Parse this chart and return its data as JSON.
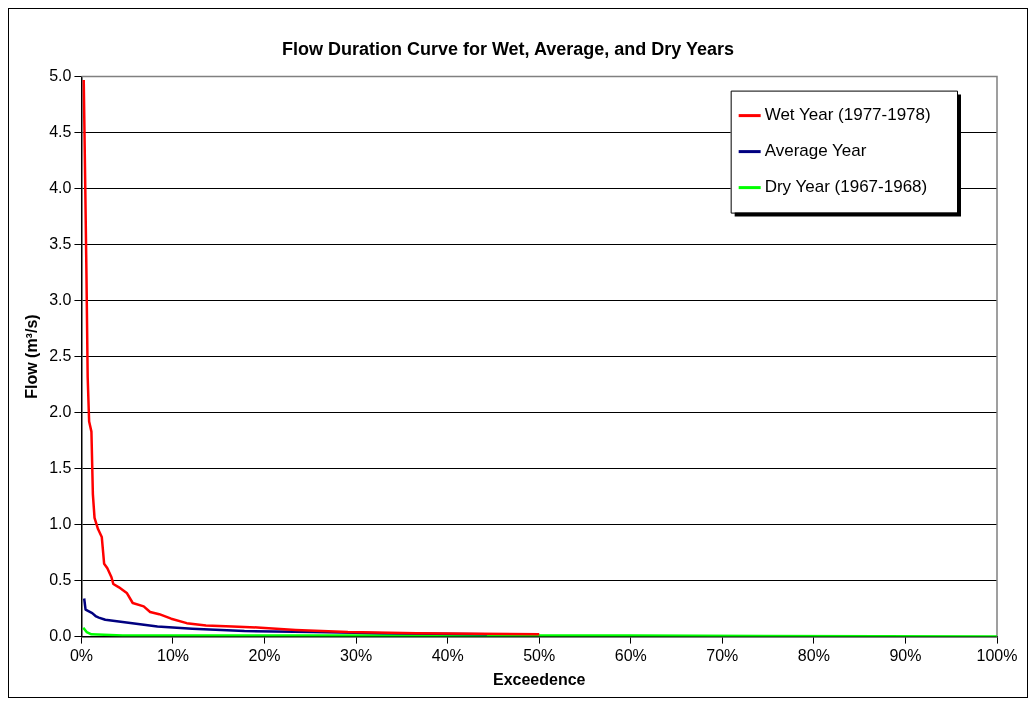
{
  "chart_data": {
    "type": "line",
    "title": "Flow Duration Curve for Wet, Average, and Dry Years",
    "xlabel": "Exceedence",
    "ylabel": "Flow (m³/s)",
    "xlim": [
      0,
      100
    ],
    "xticks": [
      {
        "value": 0,
        "label": "0%"
      },
      {
        "value": 10,
        "label": "10%"
      },
      {
        "value": 20,
        "label": "20%"
      },
      {
        "value": 30,
        "label": "30%"
      },
      {
        "value": 40,
        "label": "40%"
      },
      {
        "value": 50,
        "label": "50%"
      },
      {
        "value": 60,
        "label": "60%"
      },
      {
        "value": 70,
        "label": "70%"
      },
      {
        "value": 80,
        "label": "80%"
      },
      {
        "value": 90,
        "label": "90%"
      },
      {
        "value": 100,
        "label": "100%"
      }
    ],
    "ylim": [
      0,
      5
    ],
    "yticks": [
      {
        "value": 0,
        "label": "0.0"
      },
      {
        "value": 0.5,
        "label": "0.5"
      },
      {
        "value": 1,
        "label": "1.0"
      },
      {
        "value": 1.5,
        "label": "1.5"
      },
      {
        "value": 2,
        "label": "2.0"
      },
      {
        "value": 2.5,
        "label": "2.5"
      },
      {
        "value": 3,
        "label": "3.0"
      },
      {
        "value": 3.5,
        "label": "3.5"
      },
      {
        "value": 4,
        "label": "4.0"
      },
      {
        "value": 4.5,
        "label": "4.5"
      },
      {
        "value": 5,
        "label": "5.0"
      }
    ],
    "grid": "y",
    "legend": "top right",
    "marker": "none",
    "line_style": "solid",
    "series": [
      {
        "name": "Wet Year (1977-1978)",
        "color": "#ff0000",
        "x": [
          0.25,
          0.42,
          0.55,
          0.68,
          0.84,
          1.09,
          1.25,
          1.43,
          1.81,
          2.22,
          2.48,
          2.83,
          3.28,
          3.48,
          4.1,
          4.95,
          5.6,
          6.8,
          7.5,
          8.5,
          9.8,
          11.5,
          13.6,
          16.5,
          19.6,
          23.4,
          29.1,
          36.6,
          50
        ],
        "values": [
          4.97,
          4.0,
          3.22,
          2.32,
          1.92,
          1.83,
          1.27,
          1.06,
          0.96,
          0.89,
          0.65,
          0.61,
          0.53,
          0.47,
          0.44,
          0.39,
          0.3,
          0.27,
          0.22,
          0.2,
          0.16,
          0.12,
          0.1,
          0.09,
          0.08,
          0.06,
          0.04,
          0.03,
          0.02
        ]
      },
      {
        "name": "Average Year",
        "color": "#000080",
        "x": [
          0.3,
          0.45,
          1.18,
          1.6,
          1.9,
          2.6,
          4.5,
          8.3,
          12.1,
          17.8,
          25.3,
          32.9,
          44.3
        ],
        "values": [
          0.34,
          0.24,
          0.21,
          0.18,
          0.17,
          0.15,
          0.13,
          0.09,
          0.07,
          0.05,
          0.04,
          0.03,
          0.02
        ]
      },
      {
        "name": "Dry Year (1967-1968)",
        "color": "#00ff00",
        "x": [
          0.2,
          0.57,
          1.1,
          4.5,
          30,
          60,
          100
        ],
        "values": [
          0.08,
          0.04,
          0.02,
          0.01,
          0.01,
          0.01,
          0.0
        ]
      }
    ]
  }
}
